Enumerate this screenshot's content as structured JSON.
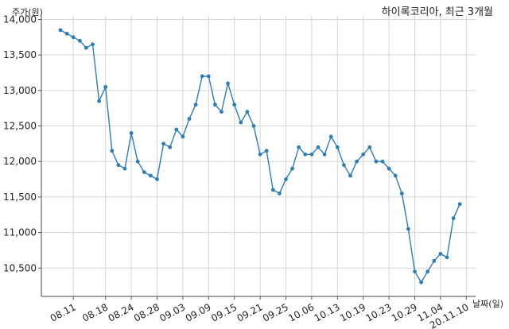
{
  "chart_data": {
    "type": "line",
    "title": "하이록코리아, 최근 3개월",
    "ylabel": "주가(원)",
    "xlabel": "날짜(일)",
    "ylim": [
      10100,
      14050
    ],
    "yticks": [
      10500,
      11000,
      11500,
      12000,
      12500,
      13000,
      13500,
      14000
    ],
    "ytick_labels": [
      "10,500",
      "11,000",
      "11,500",
      "12,000",
      "12,500",
      "13,000",
      "13,500",
      "14,000"
    ],
    "xtick_labels": [
      "08.11",
      "08.18",
      "08.24",
      "08.28",
      "09.03",
      "09.09",
      "09.15",
      "09.21",
      "09.25",
      "10.06",
      "10.13",
      "10.19",
      "10.23",
      "10.29",
      "11.04",
      "20.11.10"
    ],
    "xtick_positions": [
      2,
      7,
      11,
      15,
      19,
      23,
      27,
      31,
      35,
      39,
      43,
      47,
      51,
      55,
      59,
      63
    ],
    "grid": true,
    "color": "#2e7eb5",
    "series": [
      {
        "values": [
          13850,
          13800,
          13750,
          13700,
          13600,
          13650,
          12850,
          13050,
          12150,
          11950,
          11900,
          12400,
          12000,
          11850,
          11800,
          11750,
          12250,
          12200,
          12450,
          12350,
          12600,
          12800,
          13200,
          13200,
          12800,
          12700,
          13100,
          12800,
          12550,
          12700,
          12500,
          12100,
          12150,
          11600,
          11550,
          11750,
          11900,
          12200,
          12100,
          12100,
          12200,
          12100,
          12350,
          12200,
          11950,
          11800,
          12000,
          12100,
          12200,
          12000,
          12000,
          11900,
          11800,
          11550,
          11050,
          10450,
          10300,
          10450,
          10600,
          10700,
          10650,
          11200,
          11400
        ]
      }
    ]
  }
}
